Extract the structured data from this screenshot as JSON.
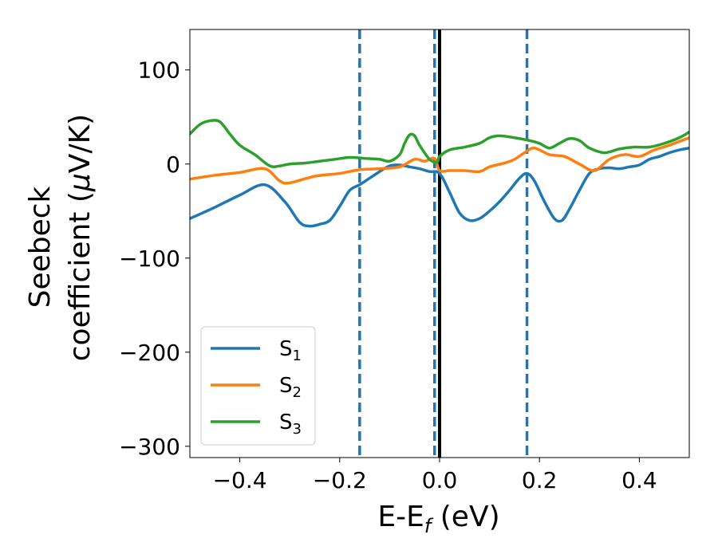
{
  "chart_data": {
    "type": "line",
    "title": "",
    "xlabel": {
      "main": "E-E",
      "sub": "f",
      "unit": " (eV)"
    },
    "ylabel": {
      "line1": "Seebeck",
      "line2_prefix": "coefficient  (",
      "mu": "μ",
      "line2_suffix": "V/K)"
    },
    "xlim": [
      -0.5,
      0.5
    ],
    "ylim": [
      -312,
      143
    ],
    "xticks": [
      {
        "value": -0.4,
        "label": "−0.4"
      },
      {
        "value": -0.2,
        "label": "−0.2"
      },
      {
        "value": 0.0,
        "label": "0.0"
      },
      {
        "value": 0.2,
        "label": "0.2"
      },
      {
        "value": 0.4,
        "label": "0.4"
      }
    ],
    "yticks": [
      {
        "value": 100,
        "label": "100"
      },
      {
        "value": 0,
        "label": "0"
      },
      {
        "value": -100,
        "label": "−100"
      },
      {
        "value": -200,
        "label": "−200"
      },
      {
        "value": -300,
        "label": "−300"
      }
    ],
    "legend_position": "lower-left",
    "series": [
      {
        "name": "S",
        "name_sub": "1",
        "color": "#1f77b4",
        "x": [
          -0.5,
          -0.45,
          -0.4,
          -0.35,
          -0.31,
          -0.28,
          -0.26,
          -0.24,
          -0.22,
          -0.2,
          -0.18,
          -0.16,
          -0.14,
          -0.12,
          -0.1,
          -0.08,
          -0.06,
          -0.04,
          -0.02,
          0.0,
          0.02,
          0.04,
          0.06,
          0.08,
          0.1,
          0.12,
          0.14,
          0.16,
          0.175,
          0.19,
          0.21,
          0.23,
          0.245,
          0.26,
          0.28,
          0.3,
          0.32,
          0.34,
          0.36,
          0.38,
          0.4,
          0.42,
          0.44,
          0.46,
          0.48,
          0.5
        ],
        "y": [
          -58,
          -46,
          -33,
          -22,
          -40,
          -62,
          -66,
          -64,
          -60,
          -45,
          -28,
          -22,
          -15,
          -8,
          -2,
          -1,
          -3,
          -5,
          -8,
          -10,
          -30,
          -52,
          -60,
          -58,
          -50,
          -40,
          -28,
          -15,
          -10,
          -18,
          -40,
          -58,
          -60,
          -48,
          -28,
          -10,
          -5,
          -4,
          -5,
          -3,
          -1,
          5,
          8,
          12,
          15,
          17
        ]
      },
      {
        "name": "S",
        "name_sub": "2",
        "color": "#ff7f0e",
        "x": [
          -0.5,
          -0.45,
          -0.4,
          -0.35,
          -0.32,
          -0.3,
          -0.25,
          -0.2,
          -0.16,
          -0.12,
          -0.08,
          -0.05,
          -0.03,
          -0.01,
          0.0,
          0.02,
          0.05,
          0.08,
          0.1,
          0.13,
          0.15,
          0.17,
          0.19,
          0.22,
          0.25,
          0.28,
          0.31,
          0.34,
          0.37,
          0.4,
          0.43,
          0.46,
          0.5
        ],
        "y": [
          -16,
          -12,
          -9,
          -5,
          -18,
          -20,
          -13,
          -10,
          -6,
          -5,
          -3,
          5,
          3,
          6,
          -7,
          -7,
          -7,
          -8,
          -3,
          1,
          5,
          12,
          17,
          10,
          8,
          0,
          -7,
          5,
          10,
          8,
          15,
          20,
          28
        ]
      },
      {
        "name": "S",
        "name_sub": "3",
        "color": "#2ca02c",
        "x": [
          -0.5,
          -0.48,
          -0.46,
          -0.44,
          -0.42,
          -0.4,
          -0.37,
          -0.34,
          -0.32,
          -0.3,
          -0.27,
          -0.24,
          -0.21,
          -0.18,
          -0.15,
          -0.12,
          -0.1,
          -0.08,
          -0.07,
          -0.06,
          -0.05,
          -0.04,
          -0.02,
          -0.005,
          0.0,
          0.02,
          0.05,
          0.08,
          0.1,
          0.12,
          0.15,
          0.18,
          0.2,
          0.22,
          0.24,
          0.26,
          0.28,
          0.3,
          0.33,
          0.36,
          0.39,
          0.42,
          0.45,
          0.48,
          0.5
        ],
        "y": [
          32,
          42,
          46,
          45,
          32,
          20,
          10,
          -2,
          -2,
          0,
          1,
          3,
          5,
          7,
          6,
          5,
          3,
          10,
          22,
          31,
          30,
          20,
          5,
          2,
          8,
          15,
          18,
          22,
          28,
          30,
          28,
          25,
          22,
          17,
          22,
          27,
          25,
          17,
          12,
          16,
          18,
          18,
          22,
          28,
          34
        ]
      }
    ],
    "vlines": [
      {
        "x": -0.16,
        "color": "#1f77b4",
        "style": "dashed"
      },
      {
        "x": -0.01,
        "color": "#1f77b4",
        "style": "dashed"
      },
      {
        "x": 0.175,
        "color": "#1f77b4",
        "style": "dashed"
      },
      {
        "x": 0.0,
        "color": "#000000",
        "style": "solid"
      }
    ]
  }
}
